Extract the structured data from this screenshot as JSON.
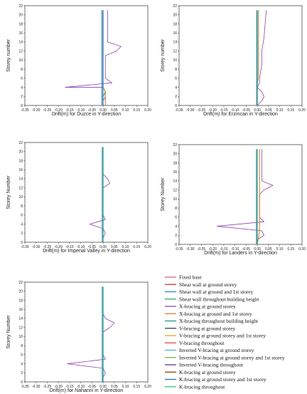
{
  "legend": [
    {
      "label": "Fixed base",
      "color": "#e0607e"
    },
    {
      "label": "Shear wall at ground storey",
      "color": "#c0392b"
    },
    {
      "label": "Shear wall at ground and 1st storey",
      "color": "#2e86de"
    },
    {
      "label": "Shear wall throughout building height",
      "color": "#27ae60"
    },
    {
      "label": "X-bracing at ground storey",
      "color": "#8e44ad"
    },
    {
      "label": "X-bracing at ground and 1st storey",
      "color": "#e67e22"
    },
    {
      "label": "X-bracing throughout building height",
      "color": "#16a085"
    },
    {
      "label": "V-bracing at ground storey",
      "color": "#2c3e50"
    },
    {
      "label": "V-bracing at ground storey and 1st storey",
      "color": "#d4ac0d"
    },
    {
      "label": "V-bracing throughout",
      "color": "#e74c3c"
    },
    {
      "label": "Inverted V-bracing at ground storey",
      "color": "#5dade2"
    },
    {
      "label": "Inverted V-bracing at ground storey and 1st storey",
      "color": "#7cb342"
    },
    {
      "label": "Inverted V-bracing throughout",
      "color": "#6c3483"
    },
    {
      "label": "K-bracing at ground storey",
      "color": "#a04000"
    },
    {
      "label": "K-bracing at ground storey and 1st storey",
      "color": "#1f77b4"
    },
    {
      "label": "K-bracing throughout",
      "color": "#2ecc71"
    }
  ],
  "chart_data": [
    {
      "type": "line",
      "xlabel": "Drift(m) for Duzce in Y-direction",
      "ylabel": "Storey number",
      "xlim": [
        -0.35,
        0.2
      ],
      "ylim": [
        0,
        22
      ],
      "xticks": [
        "-0.35",
        "-0.30",
        "-0.25",
        "-0.20",
        "-0.15",
        "-0.10",
        "-0.05",
        "0.00",
        "0.05",
        "0.10",
        "0.15",
        "0.20"
      ],
      "yticks": [
        "0",
        "2",
        "4",
        "6",
        "8",
        "10",
        "12",
        "14",
        "16",
        "18",
        "20",
        "22"
      ],
      "series": [
        {
          "values": [
            [
              0.0,
              0
            ],
            [
              0.0,
              1
            ],
            [
              0.01,
              2
            ],
            [
              0.01,
              3
            ],
            [
              0.0,
              4
            ],
            [
              -0.17,
              4
            ],
            [
              0.04,
              5
            ],
            [
              0.01,
              6
            ],
            [
              0.01,
              11
            ],
            [
              0.06,
              12
            ],
            [
              0.08,
              13
            ],
            [
              0.02,
              14
            ],
            [
              0.02,
              21
            ]
          ],
          "color": "#8e44ad"
        },
        {
          "values": [
            [
              0.0,
              0
            ],
            [
              0.0,
              2
            ],
            [
              0.01,
              3
            ],
            [
              0.0,
              4
            ],
            [
              0.0,
              21
            ]
          ],
          "color": "#27ae60"
        },
        {
          "values": [
            [
              0.01,
              0
            ],
            [
              0.01,
              3
            ],
            [
              0.0,
              4
            ],
            [
              0.0,
              21
            ]
          ],
          "color": "#e67e22"
        },
        {
          "values": [
            [
              0.0,
              0
            ],
            [
              0.0,
              21
            ]
          ],
          "color": "#2e86de"
        },
        {
          "values": [
            [
              -0.005,
              0
            ],
            [
              -0.005,
              21
            ]
          ],
          "color": "#1f77b4"
        }
      ]
    },
    {
      "type": "line",
      "xlabel": "Drift(m) for Erzincan in Y-direction",
      "ylabel": "Storey number",
      "xlim": [
        -0.35,
        0.2
      ],
      "ylim": [
        0,
        22
      ],
      "xticks": [
        "-0.35",
        "-0.30",
        "-0.25",
        "-0.20",
        "-0.15",
        "-0.10",
        "-0.05",
        "0.00",
        "0.05",
        "0.10",
        "0.15",
        "0.20"
      ],
      "yticks": [
        "0",
        "2",
        "4",
        "6",
        "8",
        "10",
        "12",
        "14",
        "16",
        "18",
        "20",
        "22"
      ],
      "series": [
        {
          "values": [
            [
              0.0,
              0
            ],
            [
              0.02,
              1
            ],
            [
              0.03,
              2
            ],
            [
              0.02,
              3
            ],
            [
              0.0,
              4
            ],
            [
              0.01,
              5
            ],
            [
              0.01,
              6
            ],
            [
              0.02,
              9
            ],
            [
              0.02,
              12
            ],
            [
              0.03,
              15
            ],
            [
              0.035,
              18
            ],
            [
              0.04,
              21
            ]
          ],
          "color": "#8e44ad"
        },
        {
          "values": [
            [
              0.0,
              0
            ],
            [
              0.0,
              5
            ],
            [
              0.005,
              6
            ],
            [
              0.005,
              21
            ]
          ],
          "color": "#e67e22"
        },
        {
          "values": [
            [
              0.0,
              0
            ],
            [
              0.0,
              21
            ]
          ],
          "color": "#27ae60"
        },
        {
          "values": [
            [
              -0.003,
              0
            ],
            [
              -0.003,
              21
            ]
          ],
          "color": "#2e86de"
        }
      ]
    },
    {
      "type": "line",
      "xlabel": "Drift(m) for Imperial Valley in Y-direction",
      "ylabel": "Storey Number",
      "xlim": [
        -0.35,
        0.2
      ],
      "ylim": [
        0,
        22
      ],
      "xticks": [
        "-0.35",
        "-0.30",
        "-0.25",
        "-0.20",
        "-0.15",
        "-0.10",
        "-0.05",
        "0.00",
        "0.05",
        "0.10",
        "0.15",
        "0.20"
      ],
      "yticks": [
        "0",
        "2",
        "4",
        "6",
        "8",
        "10",
        "12",
        "14",
        "16",
        "18",
        "20",
        "22"
      ],
      "series": [
        {
          "values": [
            [
              0.0,
              0
            ],
            [
              0.0,
              1
            ],
            [
              0.01,
              2
            ],
            [
              0.0,
              3
            ],
            [
              -0.06,
              4
            ],
            [
              0.01,
              5
            ],
            [
              0.0,
              6
            ],
            [
              0.0,
              12
            ],
            [
              0.03,
              13
            ],
            [
              0.02,
              14
            ],
            [
              0.0,
              15
            ],
            [
              0.0,
              21
            ]
          ],
          "color": "#8e44ad"
        },
        {
          "values": [
            [
              0.0,
              0
            ],
            [
              0.0,
              21
            ]
          ],
          "color": "#2e86de"
        },
        {
          "values": [
            [
              -0.004,
              0
            ],
            [
              -0.004,
              21
            ]
          ],
          "color": "#27ae60"
        }
      ]
    },
    {
      "type": "line",
      "xlabel": "Drift(m) for Landers in Y-direction",
      "ylabel": "Storey Number",
      "xlim": [
        -0.35,
        0.2
      ],
      "ylim": [
        0,
        22
      ],
      "xticks": [
        "-0.35",
        "-0.30",
        "-0.25",
        "-0.20",
        "-0.15",
        "-0.10",
        "-0.05",
        "0.00",
        "0.05",
        "0.10",
        "0.15",
        "0.20"
      ],
      "yticks": [
        "0",
        "2",
        "4",
        "6",
        "8",
        "10",
        "12",
        "14",
        "16",
        "18",
        "20",
        "22"
      ],
      "series": [
        {
          "values": [
            [
              0.0,
              0
            ],
            [
              0.0,
              1
            ],
            [
              0.03,
              2
            ],
            [
              0.02,
              3
            ],
            [
              -0.18,
              4
            ],
            [
              0.03,
              5
            ],
            [
              0.01,
              6
            ],
            [
              0.01,
              11
            ],
            [
              0.03,
              12
            ],
            [
              0.07,
              13
            ],
            [
              0.02,
              14
            ],
            [
              0.02,
              21
            ]
          ],
          "color": "#8e44ad"
        },
        {
          "values": [
            [
              0.0,
              0
            ],
            [
              0.01,
              3
            ],
            [
              0.01,
              21
            ]
          ],
          "color": "#e67e22"
        },
        {
          "values": [
            [
              0.0,
              0
            ],
            [
              0.0,
              21
            ]
          ],
          "color": "#27ae60"
        },
        {
          "values": [
            [
              -0.004,
              0
            ],
            [
              -0.004,
              21
            ]
          ],
          "color": "#2e86de"
        }
      ]
    },
    {
      "type": "line",
      "xlabel": "Drift(m) for Nahanni in Y-direction",
      "ylabel": "Storey Number",
      "xlim": [
        -0.35,
        0.2
      ],
      "ylim": [
        0,
        22
      ],
      "xticks": [
        "-0.35",
        "-0.30",
        "-0.25",
        "-0.20",
        "-0.15",
        "-0.10",
        "-0.05",
        "0.00",
        "0.05",
        "0.10",
        "0.15",
        "0.20"
      ],
      "yticks": [
        "0",
        "2",
        "4",
        "6",
        "8",
        "10",
        "12",
        "14",
        "16",
        "18",
        "20",
        "22"
      ],
      "series": [
        {
          "values": [
            [
              0.0,
              0
            ],
            [
              0.0,
              1
            ],
            [
              0.01,
              2
            ],
            [
              0.0,
              3
            ],
            [
              -0.16,
              4
            ],
            [
              0.01,
              5
            ],
            [
              0.0,
              6
            ],
            [
              0.0,
              11
            ],
            [
              0.03,
              12
            ],
            [
              0.05,
              13
            ],
            [
              0.01,
              14
            ],
            [
              0.0,
              15
            ],
            [
              0.0,
              21
            ]
          ],
          "color": "#8e44ad"
        },
        {
          "values": [
            [
              0.0,
              0
            ],
            [
              0.0,
              21
            ]
          ],
          "color": "#2e86de"
        },
        {
          "values": [
            [
              -0.004,
              0
            ],
            [
              -0.004,
              21
            ]
          ],
          "color": "#27ae60"
        }
      ]
    }
  ]
}
